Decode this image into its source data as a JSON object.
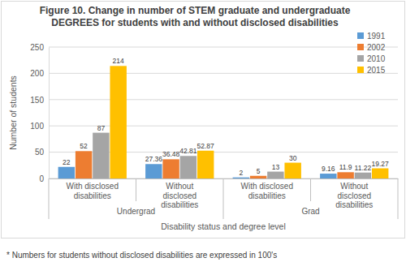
{
  "chart_data": {
    "type": "bar",
    "title": "Figure 10. Change in number of STEM graduate and undergraduate DEGREES for students with and without disclosed disabilities",
    "categories": [
      "With disclosed disabilities",
      "Without disclosed disabilities",
      "With disclosed disabilities",
      "Without disclosed disabilities"
    ],
    "category_groups": [
      "Undergrad",
      "Grad"
    ],
    "x_label": "Disability status and degree level",
    "y_label": "Number of students",
    "series": [
      {
        "name": "1991",
        "color": "#5b9bd5",
        "values": [
          22,
          27.36,
          2,
          9.16
        ]
      },
      {
        "name": "2002",
        "color": "#ed7d31",
        "values": [
          52,
          36.48,
          5,
          11.9
        ]
      },
      {
        "name": "2010",
        "color": "#a5a5a5",
        "values": [
          87,
          42.81,
          13,
          11.22
        ]
      },
      {
        "name": "2015",
        "color": "#ffc000",
        "values": [
          214,
          52.87,
          30,
          19.27
        ]
      }
    ],
    "ylim": [
      0,
      250
    ],
    "yticks": [
      0,
      50,
      100,
      150,
      200,
      250
    ],
    "grid": true,
    "legend": "upper right",
    "data_labels": true,
    "annotations": [
      "* Numbers for students without disclosed disabilities are expressed in 100's"
    ]
  }
}
